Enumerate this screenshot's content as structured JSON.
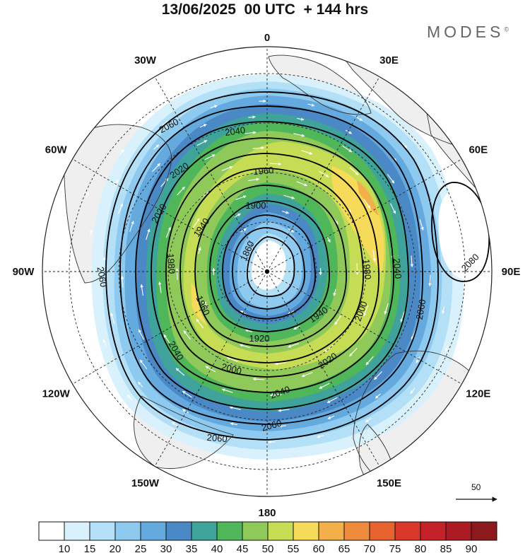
{
  "title": "13/06/2025  00 UTC  + 144 hrs",
  "brand": "MODES",
  "brand_mark": "©",
  "longitude_labels": [
    "0",
    "30E",
    "60E",
    "90E",
    "120E",
    "150E",
    "180",
    "150W",
    "120W",
    "90W",
    "60W",
    "30W"
  ],
  "contour_labels": [
    "1860",
    "1900",
    "1920",
    "1940",
    "1960",
    "1980",
    "2000",
    "2020",
    "2040",
    "2060",
    "2080"
  ],
  "reference_vector": "50",
  "colorbar": {
    "ticks": [
      "10",
      "15",
      "20",
      "25",
      "30",
      "35",
      "40",
      "45",
      "50",
      "55",
      "60",
      "65",
      "70",
      "75",
      "80",
      "85",
      "90"
    ],
    "colors": [
      "#ffffff",
      "#d9f1fc",
      "#b4e0f7",
      "#8ec9ef",
      "#64aadf",
      "#4a89c5",
      "#3fa39c",
      "#50b65a",
      "#8ec95a",
      "#c6dc54",
      "#f6da5a",
      "#f3b04a",
      "#ee8a3c",
      "#e6632f",
      "#d8372a",
      "#c42128",
      "#ab1b24",
      "#8c1a1c"
    ]
  },
  "colors": {
    "land": "#efefef",
    "coast": "#333333",
    "grid": "#222222",
    "contour": "#000000",
    "arrow": "#ffffff"
  }
}
